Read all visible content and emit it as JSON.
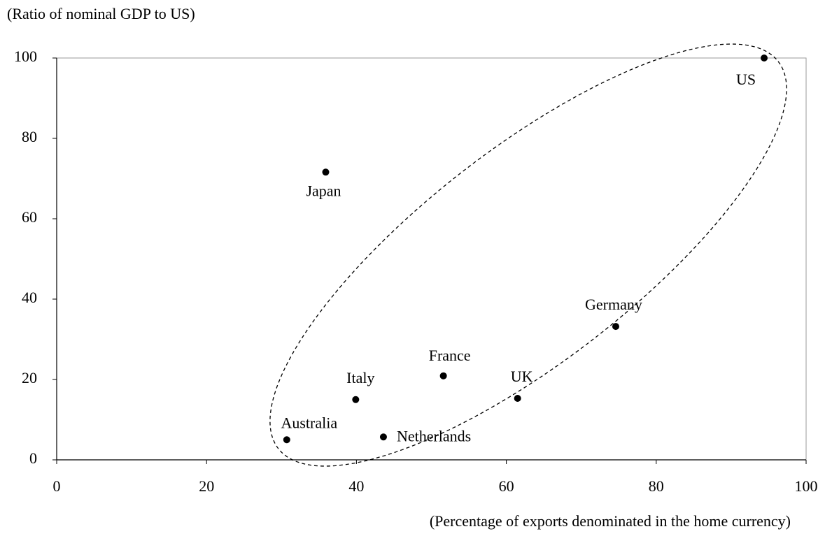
{
  "chart_data": {
    "type": "scatter",
    "y_axis_label": "(Ratio of nominal GDP to US)",
    "x_axis_label": "(Percentage of exports denominated in the home currency)",
    "labels": [
      "US",
      "Japan",
      "Germany",
      "France",
      "UK",
      "Italy",
      "Netherlands",
      "Australia"
    ],
    "x": [
      94.4,
      35.9,
      74.6,
      51.6,
      61.5,
      39.9,
      43.6,
      30.7
    ],
    "y": [
      100,
      71.6,
      33.2,
      20.9,
      15.3,
      15.0,
      5.7,
      5.0
    ],
    "color": "#000000",
    "xlim": [
      0,
      100
    ],
    "xticks": [
      0,
      20,
      40,
      60,
      80,
      100
    ],
    "ylim": [
      0,
      100
    ],
    "yticks": [
      0,
      20,
      40,
      60,
      80,
      100
    ]
  }
}
